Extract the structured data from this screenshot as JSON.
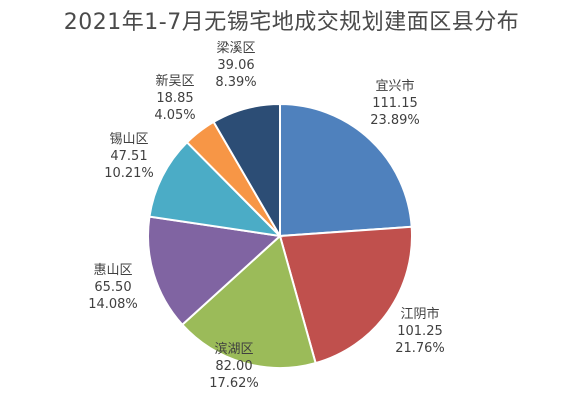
{
  "chart_data": {
    "type": "pie",
    "title": "2021年1-7月无锡宅地成交规划建面区县分布",
    "slices": [
      {
        "name": "宜兴市",
        "value": "111.15",
        "percent": "23.89%",
        "pct": 23.89,
        "color": "#4f81bd"
      },
      {
        "name": "江阴市",
        "value": "101.25",
        "percent": "21.76%",
        "pct": 21.76,
        "color": "#c0504d"
      },
      {
        "name": "滨湖区",
        "value": "82.00",
        "percent": "17.62%",
        "pct": 17.62,
        "color": "#9bbb59"
      },
      {
        "name": "惠山区",
        "value": "65.50",
        "percent": "14.08%",
        "pct": 14.08,
        "color": "#8064a2"
      },
      {
        "name": "锡山区",
        "value": "47.51",
        "percent": "10.21%",
        "pct": 10.21,
        "color": "#4bacc6"
      },
      {
        "name": "新吴区",
        "value": "18.85",
        "percent": "4.05%",
        "pct": 4.05,
        "color": "#f79646"
      },
      {
        "name": "梁溪区",
        "value": "39.06",
        "percent": "8.39%",
        "pct": 8.39,
        "color": "#2c4d75"
      }
    ]
  }
}
